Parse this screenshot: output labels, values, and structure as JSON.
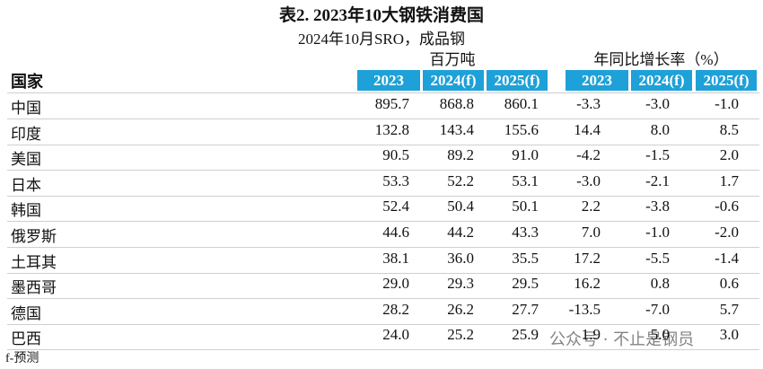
{
  "header": {
    "title": "表2. 2023年10大钢铁消费国",
    "subtitle": "2024年10月SRO，成品钢"
  },
  "table": {
    "group_headers": [
      "百万吨",
      "年同比增长率（%）"
    ],
    "country_header": "国家",
    "columns": [
      "2023",
      "2024(f)",
      "2025(f)",
      "2023",
      "2024(f)",
      "2025(f)"
    ],
    "rows": [
      [
        "中国",
        "895.7",
        "868.8",
        "860.1",
        "-3.3",
        "-3.0",
        "-1.0"
      ],
      [
        "印度",
        "132.8",
        "143.4",
        "155.6",
        "14.4",
        "8.0",
        "8.5"
      ],
      [
        "美国",
        "90.5",
        "89.2",
        "91.0",
        "-4.2",
        "-1.5",
        "2.0"
      ],
      [
        "日本",
        "53.3",
        "52.2",
        "53.1",
        "-3.0",
        "-2.1",
        "1.7"
      ],
      [
        "韩国",
        "52.4",
        "50.4",
        "50.1",
        "2.2",
        "-3.8",
        "-0.6"
      ],
      [
        "俄罗斯",
        "44.6",
        "44.2",
        "43.3",
        "7.0",
        "-1.0",
        "-2.0"
      ],
      [
        "土耳其",
        "38.1",
        "36.0",
        "35.5",
        "17.2",
        "-5.5",
        "-1.4"
      ],
      [
        "墨西哥",
        "29.0",
        "29.3",
        "29.5",
        "16.2",
        "0.8",
        "0.6"
      ],
      [
        "德国",
        "28.2",
        "26.2",
        "27.7",
        "-13.5",
        "-7.0",
        "5.7"
      ],
      [
        "巴西",
        "24.0",
        "25.2",
        "25.9",
        "1.9",
        "5.0",
        "3.0"
      ]
    ]
  },
  "footnote": "f-预测",
  "watermark": "公众号 · 不止是钢员"
}
